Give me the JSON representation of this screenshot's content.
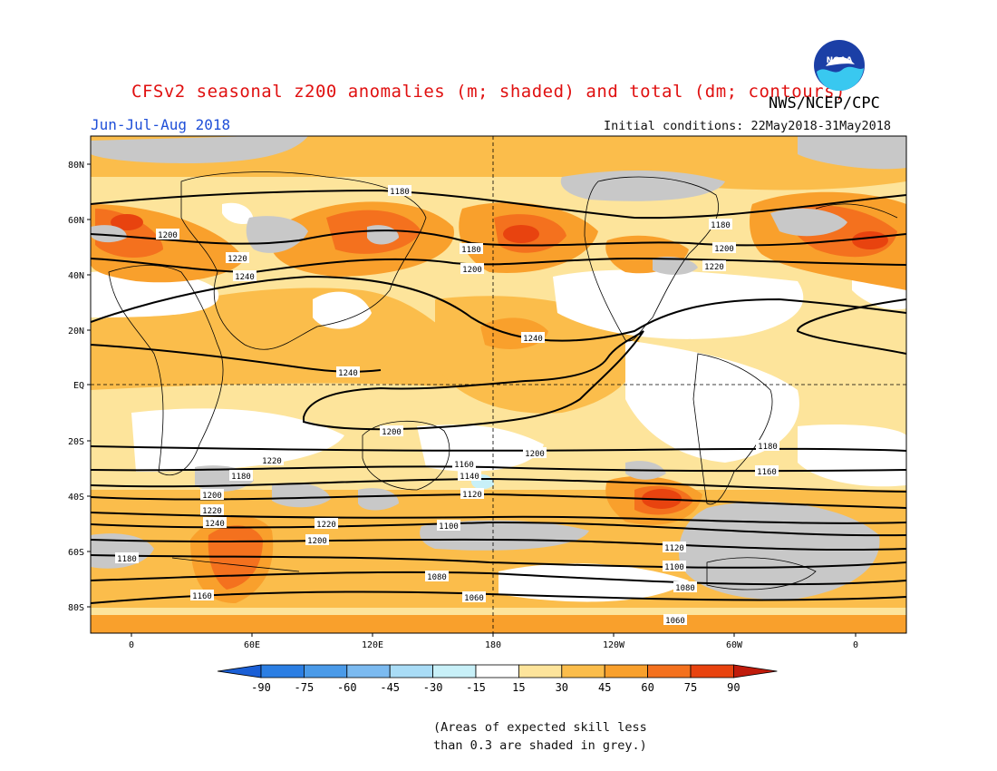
{
  "title": "CFSv2 seasonal z200 anomalies (m; shaded) and total (dm; contours)",
  "agency": "NWS/NCEP/CPC",
  "logo_text": "NOAA",
  "period": "Jun-Jul-Aug 2018",
  "initial_conditions": "Initial conditions: 22May2018-31May2018",
  "lat_labels": [
    "80N",
    "60N",
    "40N",
    "20N",
    "EQ",
    "20S",
    "40S",
    "60S",
    "80S"
  ],
  "lon_labels": [
    "0",
    "60E",
    "120E",
    "180",
    "120W",
    "60W",
    "0"
  ],
  "colorbar": {
    "ticks": [
      "-90",
      "-75",
      "-60",
      "-45",
      "-30",
      "-15",
      "15",
      "30",
      "45",
      "60",
      "75",
      "90"
    ],
    "colors": [
      "#1a5fd6",
      "#2b7ee3",
      "#4a9ae8",
      "#7bbaf0",
      "#a9dcf6",
      "#c8f0f8",
      "#ffffff",
      "#fde49b",
      "#fbbd4b",
      "#f9a02c",
      "#f4711e",
      "#e8430f",
      "#c01b0b"
    ]
  },
  "contour_labels": [
    {
      "text": "1180",
      "lon": 45,
      "lat": 48
    },
    {
      "text": "1200",
      "lon": 56,
      "lat": 33
    },
    {
      "text": "1220",
      "lon": 24,
      "lat": 29
    },
    {
      "text": "1240",
      "lon": 22,
      "lat": 31
    },
    {
      "text": "1180",
      "lon": 105,
      "lat": 84
    },
    {
      "text": "1200",
      "lon": 67,
      "lat": 84
    },
    {
      "text": "1220",
      "lon": 67,
      "lat": 90
    },
    {
      "text": "1240",
      "lon": 133,
      "lat": 89
    },
    {
      "text": "1240",
      "lon": 122,
      "lat": 172
    },
    {
      "text": "1200",
      "lon": 50,
      "lat": 190
    },
    {
      "text": "1180",
      "lon": 25,
      "lat": 243
    },
    {
      "text": "1200",
      "lon": 52,
      "lat": 202
    },
    {
      "text": "1220",
      "lon": 56,
      "lat": 223
    },
    {
      "text": "1180",
      "lon": 71,
      "lat": 240
    },
    {
      "text": "1200",
      "lon": 92,
      "lat": 309
    },
    {
      "text": "1220",
      "lon": 114,
      "lat": 309
    },
    {
      "text": "1240",
      "lon": 104,
      "lat": 312
    },
    {
      "text": "1220",
      "lon": 116,
      "lat": 24
    },
    {
      "text": "1200",
      "lon": 124,
      "lat": 28
    },
    {
      "text": "1180",
      "lon": 133,
      "lat": 32
    },
    {
      "text": "1160",
      "lon": 136,
      "lat": 36
    },
    {
      "text": "1200",
      "lon": 117,
      "lat": 34
    },
    {
      "text": "1180",
      "lon": 117,
      "lat": 36
    },
    {
      "text": "1160",
      "lon": 120,
      "lat": 40
    },
    {
      "text": "1160",
      "lon": 122,
      "lat": 48
    },
    {
      "text": "1140",
      "lon": 129,
      "lat": 53
    },
    {
      "text": "1120",
      "lon": 113,
      "lat": 57
    },
    {
      "text": "1100",
      "lon": 126,
      "lat": 60
    },
    {
      "text": "1080",
      "lon": 148,
      "lat": 71
    },
    {
      "text": "1060",
      "lon": 135,
      "lat": 81
    },
    {
      "text": "1120",
      "lon": 86,
      "lat": 53
    },
    {
      "text": "1100",
      "lon": 115,
      "lat": 60
    },
    {
      "text": "1080",
      "lon": 100,
      "lat": 67
    },
    {
      "text": "1060",
      "lon": 99,
      "lat": 76
    },
    {
      "text": "1160",
      "lon": 28,
      "lat": 44
    },
    {
      "text": "1140",
      "lon": 24,
      "lat": 52
    },
    {
      "text": "1180",
      "lon": 28,
      "lat": 40
    },
    {
      "text": "1080",
      "lon": 19,
      "lat": 62
    },
    {
      "text": "1060",
      "lon": 33,
      "lat": 75
    }
  ],
  "note": {
    "line1": "(Areas of expected skill less",
    "line2": "than 0.3 are shaded in grey.)"
  }
}
